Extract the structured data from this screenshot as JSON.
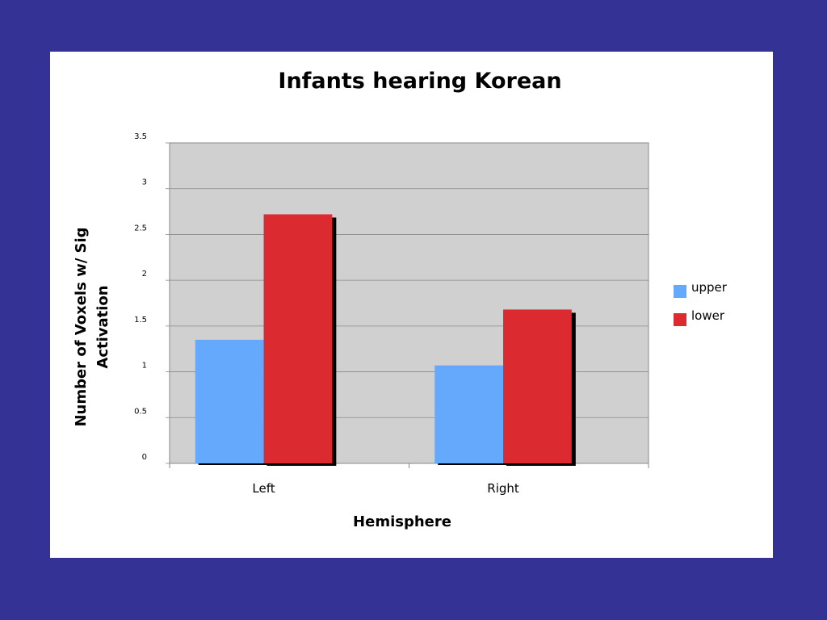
{
  "colors": {
    "background": "#343395",
    "panel": "#ffffff",
    "plot_area": "#d0d0d0",
    "gridline": "#8a8a8a",
    "shadow": "#000000"
  },
  "chart_data": {
    "type": "bar",
    "title": "Infants hearing Korean",
    "xlabel": "Hemisphere",
    "ylabel": "Number of Voxels w/ Sig Activation",
    "categories": [
      "Left",
      "Right"
    ],
    "series": [
      {
        "name": "upper",
        "color": "#65a9fd",
        "values": [
          1.35,
          1.07
        ]
      },
      {
        "name": "lower",
        "color": "#dc2a31",
        "values": [
          2.72,
          1.68
        ]
      }
    ],
    "ylim": [
      0,
      3.5
    ],
    "yticks": [
      "0",
      "0.5",
      "1",
      "1.5",
      "2",
      "2.5",
      "3",
      "3.5"
    ],
    "grid": true,
    "legend_position": "right"
  }
}
